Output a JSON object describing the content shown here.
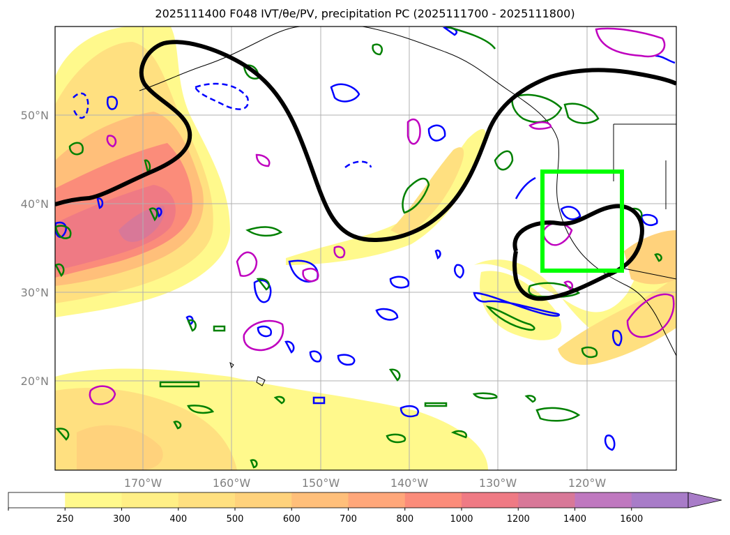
{
  "title": "2025111400 F048 IVT/θe/PV, precipitation PC (2025111700 - 2025111800)",
  "map": {
    "lat_labels": [
      "50°N",
      "40°N",
      "30°N",
      "20°N"
    ],
    "lon_labels": [
      "170°W",
      "160°W",
      "150°W",
      "140°W",
      "130°W",
      "120°W"
    ],
    "highlight_box_color": "#00ff00",
    "theta_e_color": "#000000",
    "contour_colors": {
      "blue": "#0000ff",
      "green": "#008000",
      "magenta": "#bf00bf"
    }
  },
  "colorbar": {
    "ticks": [
      "250",
      "300",
      "400",
      "500",
      "600",
      "700",
      "800",
      "1000",
      "1200",
      "1400",
      "1600"
    ],
    "colors": [
      "#ffffff",
      "#fff98c",
      "#ffef86",
      "#ffe080",
      "#ffd27c",
      "#ffbf7a",
      "#ffa77a",
      "#fb8c7a",
      "#ef7a84",
      "#d87898",
      "#bf78bf",
      "#a87cc8"
    ],
    "extend": "max"
  }
}
